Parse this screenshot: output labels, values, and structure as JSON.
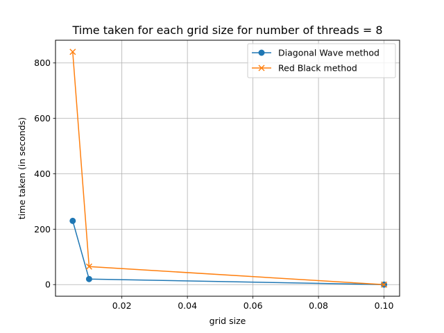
{
  "chart_data": {
    "type": "line",
    "title": "Time taken for each grid size for number of threads = 8",
    "xlabel": "grid size",
    "ylabel": "time taken (in seconds)",
    "xlim": [
      -0.00025,
      0.10475
    ],
    "ylim": [
      -42,
      882
    ],
    "xticks": [
      0.02,
      0.04,
      0.06,
      0.08,
      0.1
    ],
    "xtick_labels": [
      "0.02",
      "0.04",
      "0.06",
      "0.08",
      "0.10"
    ],
    "yticks": [
      0,
      200,
      400,
      600,
      800
    ],
    "ytick_labels": [
      "0",
      "200",
      "400",
      "600",
      "800"
    ],
    "grid": true,
    "legend_position": "top-right",
    "series": [
      {
        "name": "Diagonal Wave method",
        "color": "#1f77b4",
        "marker": "circle",
        "x": [
          0.005,
          0.01,
          0.1
        ],
        "y": [
          230,
          20,
          0
        ]
      },
      {
        "name": "Red Black method",
        "color": "#ff7f0e",
        "marker": "x",
        "x": [
          0.005,
          0.01,
          0.1
        ],
        "y": [
          840,
          65,
          0
        ]
      }
    ]
  }
}
